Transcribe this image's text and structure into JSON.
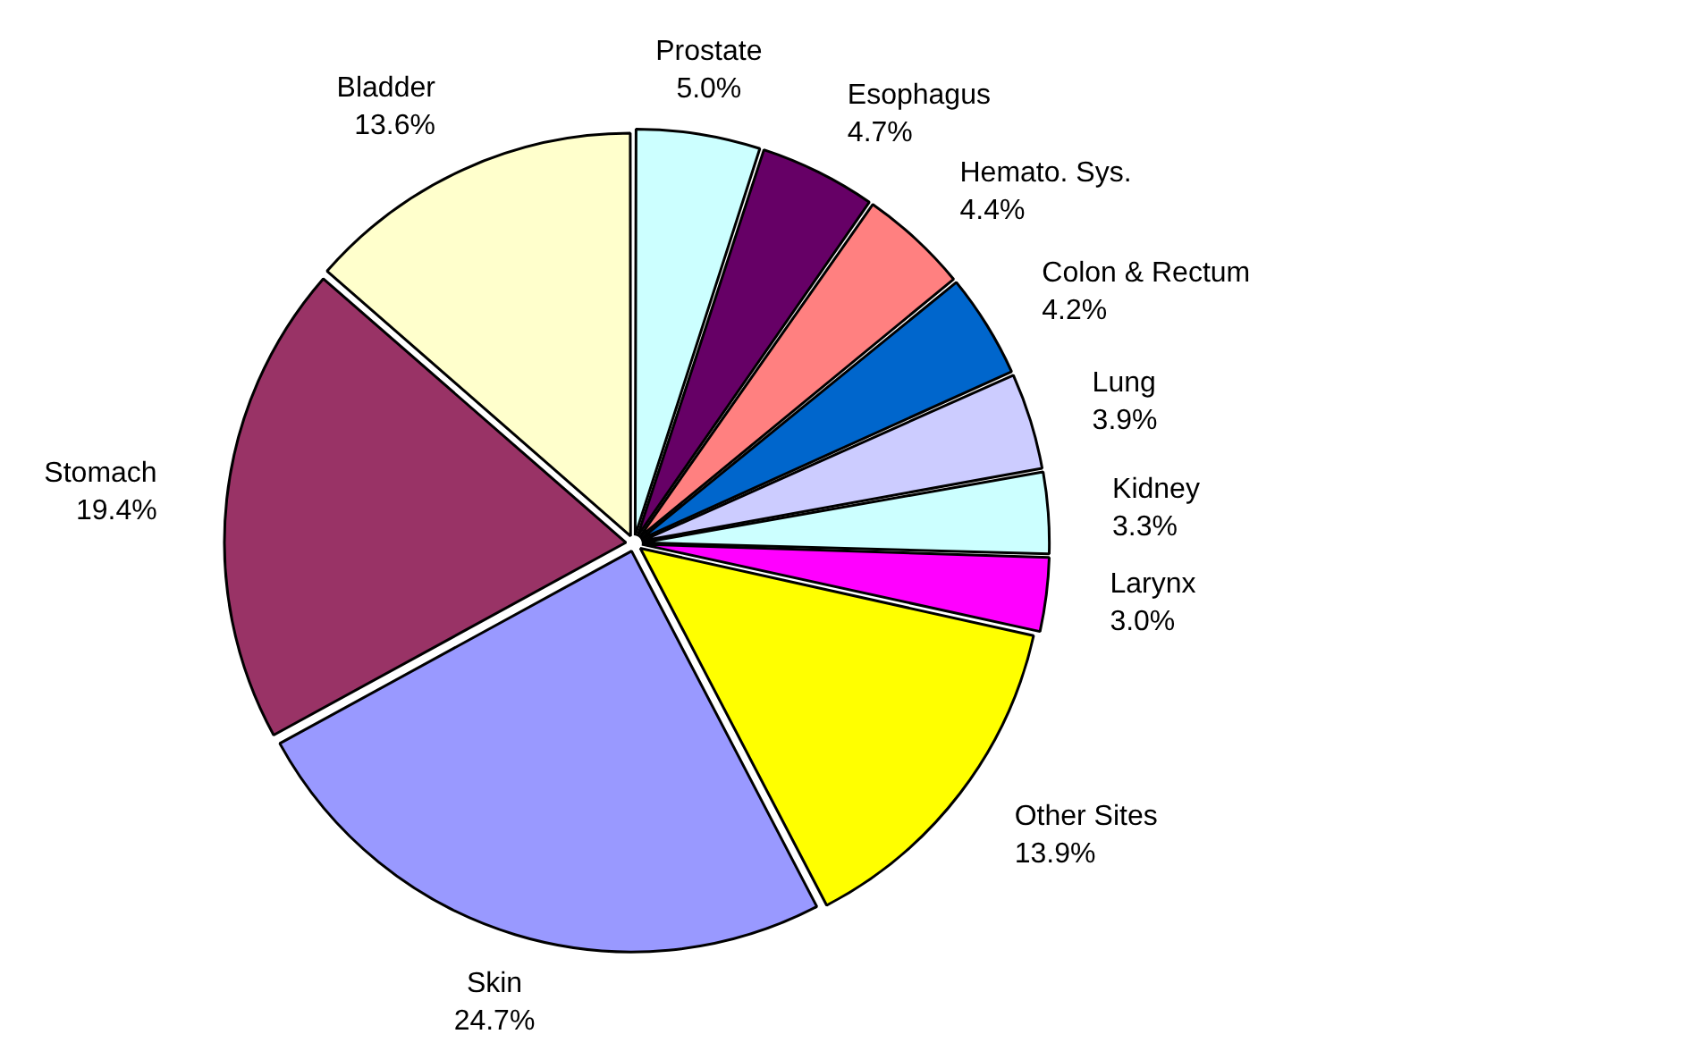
{
  "chart_data": {
    "type": "pie",
    "categories": [
      "Prostate",
      "Esophagus",
      "Hemato. Sys.",
      "Colon & Rectum",
      "Lung",
      "Kidney",
      "Larynx",
      "Other Sites",
      "Skin",
      "Stomach",
      "Bladder"
    ],
    "values": [
      5.0,
      4.7,
      4.4,
      4.2,
      3.9,
      3.3,
      3.0,
      13.9,
      24.7,
      19.4,
      13.6
    ],
    "value_labels": [
      "5.0%",
      "4.7%",
      "4.4%",
      "4.2%",
      "3.9%",
      "3.3%",
      "3.0%",
      "13.9%",
      "24.7%",
      "19.4%",
      "13.6%"
    ],
    "colors": [
      "#ccffff",
      "#660066",
      "#ff8080",
      "#0066cc",
      "#ccccff",
      "#ccffff",
      "#ff00ff",
      "#ffff00",
      "#9999ff",
      "#993366",
      "#ffffcc"
    ],
    "legend": false
  }
}
